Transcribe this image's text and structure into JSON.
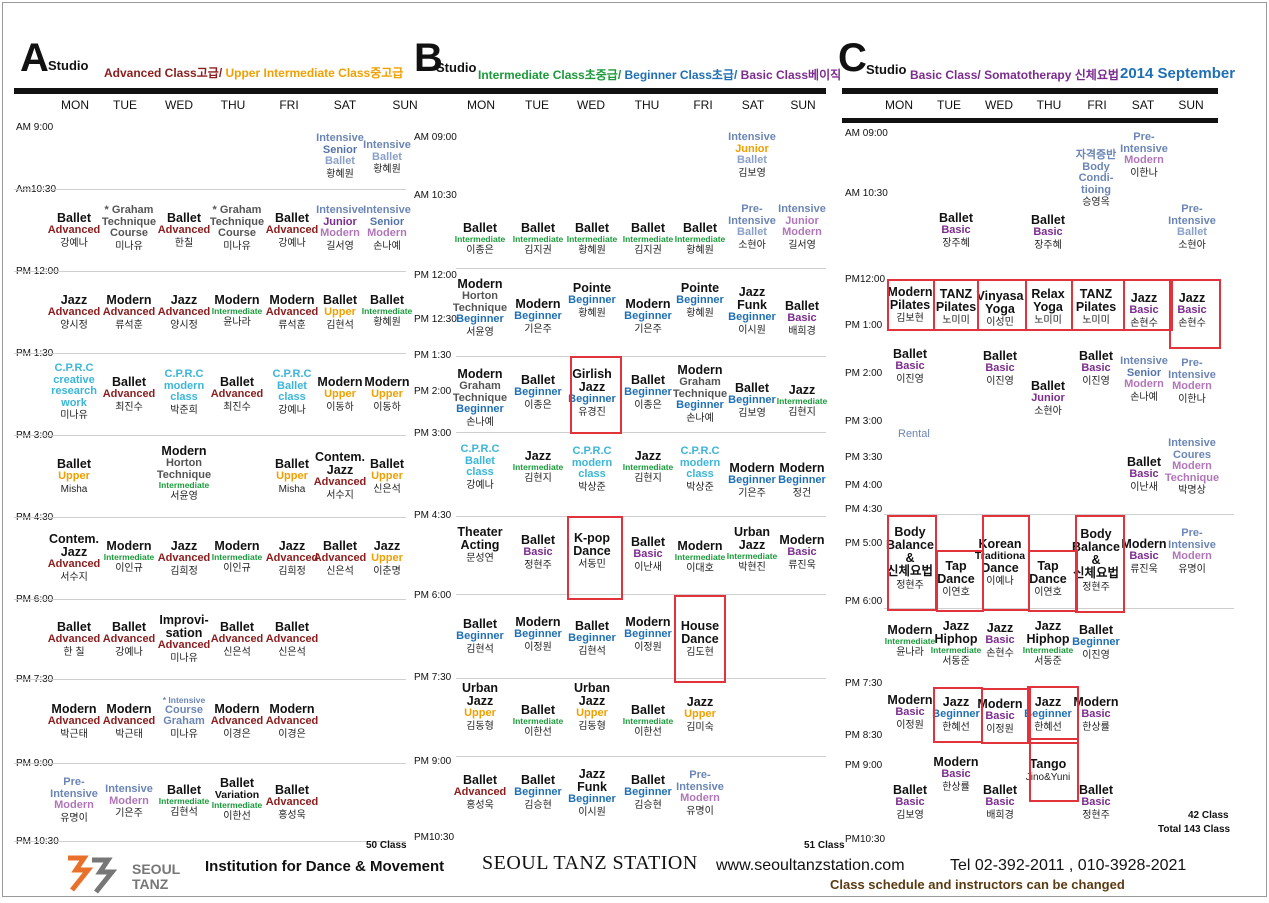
{
  "colors": {
    "Advanced": "#8b1d1d",
    "Upper": "#f0a000",
    "Intermediate": "#1a9a3a",
    "Beginner": "#1f6fb5",
    "Basic": "#7b2d8e",
    "Junior": "#7b2d8e",
    "Senior": "#5474a8",
    "Intensive": "#6b86b6",
    "Modern": "#b176b9",
    "Ballet": "#8aa0c8",
    "Cprc": "#3bb6d8",
    "Graham": "#555",
    "Default": "#111",
    "Month": "#1f6fb5",
    "Rental": "#6b86b6"
  },
  "days": [
    "MON",
    "TUE",
    "WED",
    "THU",
    "FRI",
    "SAT",
    "SUN"
  ],
  "studios": [
    {
      "letter": "A",
      "word": "Studio",
      "desc": [
        {
          "text": "Advanced Class",
          "c": "Advanced"
        },
        {
          "text": "고급",
          "c": "Advanced"
        },
        {
          "text": "/ ",
          "c": "Advanced"
        },
        {
          "text": "Upper Intermediate Class",
          "c": "Upper"
        },
        {
          "text": "중고급",
          "c": "Upper"
        }
      ],
      "times": [
        "AM 9:00",
        "Am10:30",
        "PM 12:00",
        "PM 1:30",
        "PM 3:00",
        "PM 4:30",
        "PM 6:00",
        "PM 7:30",
        "PM 9:00",
        "PM 10:30"
      ],
      "count": "50 Class",
      "cells": [
        {
          "d": 5,
          "r": 0,
          "lines": [
            [
              "Intensive",
              "Intensive"
            ],
            [
              "Senior",
              "Senior"
            ],
            [
              "Ballet",
              "Ballet"
            ]
          ],
          "teacher": "황혜원"
        },
        {
          "d": 6,
          "r": 0,
          "lines": [
            [
              "Intensive",
              "Intensive"
            ],
            [
              "Ballet",
              "Ballet"
            ]
          ],
          "teacher": "황혜원"
        },
        {
          "d": 0,
          "r": 1,
          "lines": [
            [
              "Ballet",
              "Default"
            ],
            [
              "Advanced",
              "Advanced"
            ]
          ],
          "teacher": "강예나"
        },
        {
          "d": 1,
          "r": 1,
          "lines": [
            [
              "* Graham",
              "Graham"
            ],
            [
              "Technique",
              "Graham"
            ],
            [
              "Course",
              "Graham"
            ]
          ],
          "teacher": "미나유",
          "thin": true
        },
        {
          "d": 2,
          "r": 1,
          "lines": [
            [
              "Ballet",
              "Default"
            ],
            [
              "Advanced",
              "Advanced"
            ]
          ],
          "teacher": "한칠"
        },
        {
          "d": 3,
          "r": 1,
          "lines": [
            [
              "* Graham",
              "Graham"
            ],
            [
              "Technique",
              "Graham"
            ],
            [
              "Course",
              "Graham"
            ]
          ],
          "teacher": "미나유",
          "thin": true
        },
        {
          "d": 4,
          "r": 1,
          "lines": [
            [
              "Ballet",
              "Default"
            ],
            [
              "Advanced",
              "Advanced"
            ]
          ],
          "teacher": "강예나"
        },
        {
          "d": 5,
          "r": 1,
          "lines": [
            [
              "Intensive",
              "Intensive"
            ],
            [
              "Junior",
              "Junior"
            ],
            [
              "Modern",
              "Modern"
            ]
          ],
          "teacher": "길서영"
        },
        {
          "d": 6,
          "r": 1,
          "lines": [
            [
              "Intensive",
              "Intensive"
            ],
            [
              "Senior",
              "Senior"
            ],
            [
              "Modern",
              "Modern"
            ]
          ],
          "teacher": "손나예"
        },
        {
          "d": 0,
          "r": 2,
          "lines": [
            [
              "Jazz",
              "Default"
            ],
            [
              "Advanced",
              "Advanced"
            ]
          ],
          "teacher": "양시정"
        },
        {
          "d": 1,
          "r": 2,
          "lines": [
            [
              "Modern",
              "Default"
            ],
            [
              "Advanced",
              "Advanced"
            ]
          ],
          "teacher": "류석훈"
        },
        {
          "d": 2,
          "r": 2,
          "lines": [
            [
              "Jazz",
              "Default"
            ],
            [
              "Advanced",
              "Advanced"
            ]
          ],
          "teacher": "양시정"
        },
        {
          "d": 3,
          "r": 2,
          "lines": [
            [
              "Modern",
              "Default"
            ],
            [
              "Intermediate",
              "Intermediate"
            ]
          ],
          "teacher": "윤나라"
        },
        {
          "d": 4,
          "r": 2,
          "lines": [
            [
              "Modern",
              "Default"
            ],
            [
              "Advanced",
              "Advanced"
            ]
          ],
          "teacher": "류석훈"
        },
        {
          "d": 5,
          "r": 2,
          "lines": [
            [
              "Ballet",
              "Default"
            ],
            [
              "Upper",
              "Upper"
            ]
          ],
          "teacher": "김현석"
        },
        {
          "d": 6,
          "r": 2,
          "lines": [
            [
              "Ballet",
              "Default"
            ],
            [
              "Intermediate",
              "Intermediate"
            ]
          ],
          "teacher": "황혜원"
        },
        {
          "d": 0,
          "r": 3,
          "lines": [
            [
              "C.P.R.C",
              "Cprc"
            ],
            [
              "creative",
              "Cprc"
            ],
            [
              "research",
              "Cprc"
            ],
            [
              "work",
              "Cprc"
            ]
          ],
          "teacher": "미나유"
        },
        {
          "d": 1,
          "r": 3,
          "lines": [
            [
              "Ballet",
              "Default"
            ],
            [
              "Advanced",
              "Advanced"
            ]
          ],
          "teacher": "최진수"
        },
        {
          "d": 2,
          "r": 3,
          "lines": [
            [
              "C.P.R.C",
              "Cprc"
            ],
            [
              "modern",
              "Cprc"
            ],
            [
              "class",
              "Cprc"
            ]
          ],
          "teacher": "박준희"
        },
        {
          "d": 3,
          "r": 3,
          "lines": [
            [
              "Ballet",
              "Default"
            ],
            [
              "Advanced",
              "Advanced"
            ]
          ],
          "teacher": "최진수"
        },
        {
          "d": 4,
          "r": 3,
          "lines": [
            [
              "C.P.R.C",
              "Cprc"
            ],
            [
              "Ballet",
              "Cprc"
            ],
            [
              "class",
              "Cprc"
            ]
          ],
          "teacher": "강예나"
        },
        {
          "d": 5,
          "r": 3,
          "lines": [
            [
              "Modern",
              "Default"
            ],
            [
              "Upper",
              "Upper"
            ]
          ],
          "teacher": "이동하"
        },
        {
          "d": 6,
          "r": 3,
          "lines": [
            [
              "Modern",
              "Default"
            ],
            [
              "Upper",
              "Upper"
            ]
          ],
          "teacher": "이동하"
        },
        {
          "d": 0,
          "r": 4,
          "lines": [
            [
              "Ballet",
              "Default"
            ],
            [
              "Upper",
              "Upper"
            ]
          ],
          "teacher": "Misha"
        },
        {
          "d": 2,
          "r": 4,
          "lines": [
            [
              "Modern",
              "Default"
            ],
            [
              "Horton",
              "Graham"
            ],
            [
              "Technique",
              "Graham"
            ],
            [
              "Intermediate",
              "Intermediate"
            ]
          ],
          "teacher": "서윤영"
        },
        {
          "d": 4,
          "r": 4,
          "lines": [
            [
              "Ballet",
              "Default"
            ],
            [
              "Upper",
              "Upper"
            ]
          ],
          "teacher": "Misha"
        },
        {
          "d": 5,
          "r": 4,
          "lines": [
            [
              "Contem.",
              "Default"
            ],
            [
              "Jazz",
              "Default"
            ],
            [
              "Advanced",
              "Advanced"
            ]
          ],
          "teacher": "서수지"
        },
        {
          "d": 6,
          "r": 4,
          "lines": [
            [
              "Ballet",
              "Default"
            ],
            [
              "Upper",
              "Upper"
            ]
          ],
          "teacher": "신은석"
        },
        {
          "d": 0,
          "r": 5,
          "lines": [
            [
              "Contem.",
              "Default"
            ],
            [
              "Jazz",
              "Default"
            ],
            [
              "Advanced",
              "Advanced"
            ]
          ],
          "teacher": "서수지"
        },
        {
          "d": 1,
          "r": 5,
          "lines": [
            [
              "Modern",
              "Default"
            ],
            [
              "Intermediate",
              "Intermediate"
            ]
          ],
          "teacher": "이인규"
        },
        {
          "d": 2,
          "r": 5,
          "lines": [
            [
              "Jazz",
              "Default"
            ],
            [
              "Advanced",
              "Advanced"
            ]
          ],
          "teacher": "김희정"
        },
        {
          "d": 3,
          "r": 5,
          "lines": [
            [
              "Modern",
              "Default"
            ],
            [
              "Intermediate",
              "Intermediate"
            ]
          ],
          "teacher": "이인규"
        },
        {
          "d": 4,
          "r": 5,
          "lines": [
            [
              "Jazz",
              "Default"
            ],
            [
              "Advanced",
              "Advanced"
            ]
          ],
          "teacher": "김희정"
        },
        {
          "d": 5,
          "r": 5,
          "lines": [
            [
              "Ballet",
              "Default"
            ],
            [
              "Advanced",
              "Advanced"
            ]
          ],
          "teacher": "신은석"
        },
        {
          "d": 6,
          "r": 5,
          "lines": [
            [
              "Jazz",
              "Default"
            ],
            [
              "Upper",
              "Upper"
            ]
          ],
          "teacher": "이춘명"
        },
        {
          "d": 0,
          "r": 6,
          "lines": [
            [
              "Ballet",
              "Default"
            ],
            [
              "Advanced",
              "Advanced"
            ]
          ],
          "teacher": "한 칠"
        },
        {
          "d": 1,
          "r": 6,
          "lines": [
            [
              "Ballet",
              "Default"
            ],
            [
              "Advanced",
              "Advanced"
            ]
          ],
          "teacher": "강예나"
        },
        {
          "d": 2,
          "r": 6,
          "lines": [
            [
              "Improvi-",
              "Default"
            ],
            [
              "sation",
              "Default"
            ],
            [
              "Advanced",
              "Advanced"
            ]
          ],
          "teacher": "미나유"
        },
        {
          "d": 3,
          "r": 6,
          "lines": [
            [
              "Ballet",
              "Default"
            ],
            [
              "Advanced",
              "Advanced"
            ]
          ],
          "teacher": "신은석"
        },
        {
          "d": 4,
          "r": 6,
          "lines": [
            [
              "Ballet",
              "Default"
            ],
            [
              "Advanced",
              "Advanced"
            ]
          ],
          "teacher": "신은석"
        },
        {
          "d": 0,
          "r": 7,
          "lines": [
            [
              "Modern",
              "Default"
            ],
            [
              "Advanced",
              "Advanced"
            ]
          ],
          "teacher": "박근태"
        },
        {
          "d": 1,
          "r": 7,
          "lines": [
            [
              "Modern",
              "Default"
            ],
            [
              "Advanced",
              "Advanced"
            ]
          ],
          "teacher": "박근태"
        },
        {
          "d": 2,
          "r": 7,
          "lines": [
            [
              "* Intensive",
              "Intensive"
            ],
            [
              "Course",
              "Intensive"
            ],
            [
              "Graham",
              "Intensive"
            ]
          ],
          "teacher": "미나유"
        },
        {
          "d": 3,
          "r": 7,
          "lines": [
            [
              "Modern",
              "Default"
            ],
            [
              "Advanced",
              "Advanced"
            ]
          ],
          "teacher": "이경은"
        },
        {
          "d": 4,
          "r": 7,
          "lines": [
            [
              "Modern",
              "Default"
            ],
            [
              "Advanced",
              "Advanced"
            ]
          ],
          "teacher": "이경은"
        },
        {
          "d": 0,
          "r": 8,
          "lines": [
            [
              "Pre-",
              "Intensive"
            ],
            [
              "Intensive",
              "Intensive"
            ],
            [
              "Modern",
              "Modern"
            ]
          ],
          "teacher": "유명이"
        },
        {
          "d": 1,
          "r": 8,
          "lines": [
            [
              "Intensive",
              "Intensive"
            ],
            [
              "Modern",
              "Modern"
            ]
          ],
          "teacher": "기은주"
        },
        {
          "d": 2,
          "r": 8,
          "lines": [
            [
              "Ballet",
              "Default"
            ],
            [
              "Intermediate",
              "Intermediate"
            ]
          ],
          "teacher": "김현석"
        },
        {
          "d": 3,
          "r": 8,
          "lines": [
            [
              "Ballet",
              "Default"
            ],
            [
              "Variation",
              "Default"
            ],
            [
              "Intermediate",
              "Intermediate"
            ]
          ],
          "teacher": "이한선"
        },
        {
          "d": 4,
          "r": 8,
          "lines": [
            [
              "Ballet",
              "Default"
            ],
            [
              "Advanced",
              "Advanced"
            ]
          ],
          "teacher": "홍성욱"
        }
      ]
    },
    {
      "letter": "B",
      "word": "Studio",
      "desc": [
        {
          "text": "Intermediate Class",
          "c": "Intermediate"
        },
        {
          "text": "초중급",
          "c": "Intermediate"
        },
        {
          "text": "/ ",
          "c": "Intermediate"
        },
        {
          "text": "Beginner Class",
          "c": "Beginner"
        },
        {
          "text": "초급",
          "c": "Beginner"
        },
        {
          "text": "/ ",
          "c": "Beginner"
        },
        {
          "text": "Basic Class",
          "c": "Basic"
        },
        {
          "text": "베이직",
          "c": "Basic"
        }
      ],
      "times": [
        "AM 09:00",
        "AM 10:30",
        "PM 12:00",
        "PM 12:30",
        "PM 1:30",
        "PM 2:00",
        "PM 3:00",
        "PM 4:30",
        "PM 6:00",
        "PM 7:30",
        "PM 9:00",
        "PM10:30"
      ],
      "count": "51 Class",
      "cells": []
    },
    {
      "letter": "C",
      "word": "Studio",
      "desc": [
        {
          "text": "Basic Class",
          "c": "Basic"
        },
        {
          "text": "/ ",
          "c": "Basic"
        },
        {
          "text": "Somatotherapy",
          "c": "Basic"
        },
        {
          "text": " 신체요법",
          "c": "Basic"
        }
      ],
      "month": "2014 September",
      "times": [
        "AM 09:00",
        "AM 10:30",
        "PM12:00",
        "PM 1:00",
        "PM 2:00",
        "PM 3:00",
        "PM 3:30",
        "PM 4:00",
        "PM 4:30",
        "PM 5:00",
        "PM 6:00",
        "PM 7:30",
        "PM 8:30",
        "PM 9:00",
        "PM10:30"
      ],
      "count": "42 Class",
      "total": "Total 143 Class",
      "rental": "Rental",
      "cells": []
    }
  ],
  "footer": {
    "logo_line1": "SEOUL",
    "logo_line2": "TANZ",
    "institution": "Institution for Dance & Movement",
    "brand": "SEOUL TANZ STATION",
    "website": "www.seoultanzstation.com",
    "tel": "Tel 02-392-2011 , 010-3928-2021",
    "notice": "Class schedule and instructors can be changed"
  }
}
